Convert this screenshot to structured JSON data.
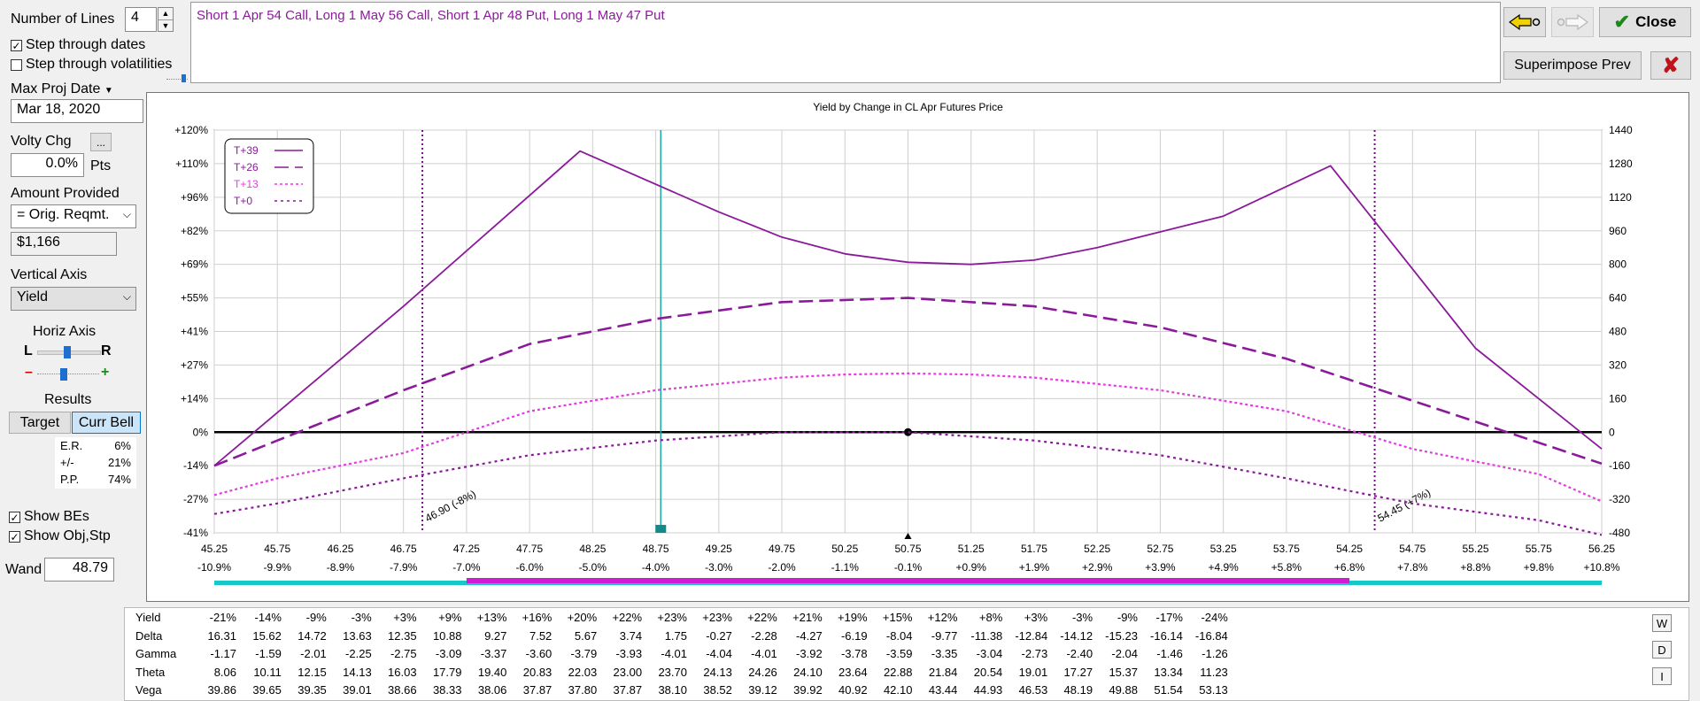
{
  "left": {
    "num_lines_label": "Number of Lines",
    "num_lines_value": "4",
    "step_dates_label": "Step through dates",
    "step_dates_checked": true,
    "step_vol_label": "Step through volatilities",
    "step_vol_checked": false,
    "max_proj_label": "Max Proj Date",
    "max_proj_value": "Mar 18, 2020",
    "volty_label": "Volty Chg",
    "volty_btn": "...",
    "volty_value": "0.0%",
    "volty_unit": "Pts",
    "amount_label": "Amount Provided",
    "amount_select": "= Orig. Reqmt.",
    "amount_value": "$1,166",
    "vaxis_label": "Vertical Axis",
    "vaxis_select": "Yield",
    "haxis_label": "Horiz Axis",
    "haxis_l": "L",
    "haxis_r": "R",
    "haxis_minus": "–",
    "haxis_plus": "+",
    "results_label": "Results",
    "target_btn": "Target",
    "currbell_btn": "Curr Bell",
    "stats": [
      {
        "k": "E.R.",
        "v": "6%"
      },
      {
        "k": "+/-",
        "v": "21%"
      },
      {
        "k": "P.P.",
        "v": "74%"
      }
    ],
    "show_bes_label": "Show BEs",
    "show_objstp_label": "Show Obj,Stp",
    "wand_label": "Wand",
    "wand_value": "48.79"
  },
  "position_text": "Short 1 Apr 54 Call, Long 1 May 56 Call, Short 1 Apr 48 Put, Long 1 May 47 Put",
  "top_right": {
    "close_label": "Close",
    "superimpose_label": "Superimpose Prev",
    "colors": {
      "close_check": "#1a8a1a",
      "cancel_x": "#c0141c",
      "arrow_yellow": "#f2d100"
    }
  },
  "chart_data": {
    "type": "line",
    "title": "Yield by Change in CL Apr Futures Price",
    "x": [
      45.25,
      45.75,
      46.25,
      46.75,
      47.25,
      47.75,
      48.25,
      48.75,
      49.25,
      49.75,
      50.25,
      50.75,
      51.25,
      51.75,
      52.25,
      52.75,
      53.25,
      53.75,
      54.25,
      54.75,
      55.25,
      55.75,
      56.25
    ],
    "x_tick_labels": [
      "45.25",
      "45.75",
      "46.25",
      "46.75",
      "47.25",
      "47.75",
      "48.25",
      "48.75",
      "49.25",
      "49.75",
      "50.25",
      "50.75",
      "51.25",
      "51.75",
      "52.25",
      "52.75",
      "53.25",
      "53.75",
      "54.25",
      "54.75",
      "55.25",
      "55.75",
      "56.25"
    ],
    "x_pct_labels": [
      "-10.9%",
      "-9.9%",
      "-8.9%",
      "-7.9%",
      "-7.0%",
      "-6.0%",
      "-5.0%",
      "-4.0%",
      "-3.0%",
      "-2.0%",
      "-1.1%",
      "-0.1%",
      "+0.9%",
      "+1.9%",
      "+2.9%",
      "+3.9%",
      "+4.9%",
      "+5.8%",
      "+6.8%",
      "+7.8%",
      "+8.8%",
      "+9.8%",
      "+10.8%"
    ],
    "y_left_ticks": [
      "+120%",
      "+110%",
      "+96%",
      "+82%",
      "+69%",
      "+55%",
      "+41%",
      "+27%",
      "+14%",
      "0%",
      "-14%",
      "-27%",
      "-41%"
    ],
    "y_right_ticks": [
      "1440",
      "1280",
      "1120",
      "960",
      "800",
      "640",
      "480",
      "320",
      "160",
      "0",
      "-160",
      "-320",
      "-480"
    ],
    "ylim_right": [
      -480,
      1440
    ],
    "series": [
      {
        "name": "T+39",
        "style": "solid",
        "color": "#8b1a9b",
        "x": [
          45.25,
          46.75,
          48.15,
          49.25,
          49.75,
          50.25,
          50.75,
          51.25,
          51.75,
          52.25,
          53.25,
          54.1,
          55.25,
          56.25
        ],
        "y": [
          -160,
          600,
          1340,
          1050,
          930,
          850,
          810,
          800,
          820,
          880,
          1030,
          1270,
          400,
          -80
        ]
      },
      {
        "name": "T+26",
        "style": "dash",
        "color": "#8b1a9b",
        "x": [
          45.25,
          45.75,
          46.75,
          47.75,
          48.75,
          49.75,
          50.75,
          51.75,
          52.75,
          53.75,
          54.75,
          55.75,
          56.25
        ],
        "y": [
          -160,
          -40,
          200,
          420,
          540,
          620,
          640,
          600,
          500,
          350,
          150,
          -50,
          -150
        ]
      },
      {
        "name": "T+13",
        "style": "dotdash",
        "color": "#e23ddf",
        "x": [
          45.25,
          45.75,
          46.75,
          47.75,
          48.75,
          49.75,
          50.25,
          50.75,
          51.25,
          51.75,
          52.75,
          53.75,
          54.75,
          55.75,
          56.25
        ],
        "y": [
          -300,
          -220,
          -100,
          100,
          200,
          260,
          275,
          280,
          275,
          260,
          200,
          100,
          -80,
          -200,
          -330
        ]
      },
      {
        "name": "T+0",
        "style": "dot",
        "color": "#8b1a9b",
        "x": [
          45.25,
          45.75,
          46.75,
          47.75,
          48.75,
          49.75,
          50.75,
          51.75,
          52.75,
          53.75,
          54.75,
          55.75,
          56.25
        ],
        "y": [
          -390,
          -340,
          -220,
          -110,
          -40,
          0,
          0,
          -40,
          -110,
          -220,
          -340,
          -420,
          -490
        ]
      }
    ],
    "breakevens": [
      {
        "x": 46.9,
        "label": "46.90 (-8%)"
      },
      {
        "x": 54.45,
        "label": "54.45 (+7%)"
      }
    ],
    "wand_x": 48.79,
    "current_x": 50.75,
    "grid": true,
    "legend_placement": "top-left",
    "bell_bar": {
      "from": 45.25,
      "to": 56.25,
      "inner_from": 47.25,
      "inner_to": 54.25,
      "outer_color": "#17c8c8",
      "inner_color": "#d21ad2"
    }
  },
  "greeks": {
    "rows": [
      {
        "label": "Yield",
        "values": [
          "-21%",
          "-14%",
          "-9%",
          "-3%",
          "+3%",
          "+9%",
          "+13%",
          "+16%",
          "+20%",
          "+22%",
          "+23%",
          "+23%",
          "+22%",
          "+21%",
          "+19%",
          "+15%",
          "+12%",
          "+8%",
          "+3%",
          "-3%",
          "-9%",
          "-17%",
          "-24%"
        ]
      },
      {
        "label": "Delta",
        "values": [
          "16.31",
          "15.62",
          "14.72",
          "13.63",
          "12.35",
          "10.88",
          "9.27",
          "7.52",
          "5.67",
          "3.74",
          "1.75",
          "-0.27",
          "-2.28",
          "-4.27",
          "-6.19",
          "-8.04",
          "-9.77",
          "-11.38",
          "-12.84",
          "-14.12",
          "-15.23",
          "-16.14",
          "-16.84"
        ]
      },
      {
        "label": "Gamma",
        "values": [
          "-1.17",
          "-1.59",
          "-2.01",
          "-2.25",
          "-2.75",
          "-3.09",
          "-3.37",
          "-3.60",
          "-3.79",
          "-3.93",
          "-4.01",
          "-4.04",
          "-4.01",
          "-3.92",
          "-3.78",
          "-3.59",
          "-3.35",
          "-3.04",
          "-2.73",
          "-2.40",
          "-2.04",
          "-1.46",
          "-1.26"
        ]
      },
      {
        "label": "Theta",
        "values": [
          "8.06",
          "10.11",
          "12.15",
          "14.13",
          "16.03",
          "17.79",
          "19.40",
          "20.83",
          "22.03",
          "23.00",
          "23.70",
          "24.13",
          "24.26",
          "24.10",
          "23.64",
          "22.88",
          "21.84",
          "20.54",
          "19.01",
          "17.27",
          "15.37",
          "13.34",
          "11.23"
        ]
      },
      {
        "label": "Vega",
        "values": [
          "39.86",
          "39.65",
          "39.35",
          "39.01",
          "38.66",
          "38.33",
          "38.06",
          "37.87",
          "37.80",
          "37.87",
          "38.10",
          "38.52",
          "39.12",
          "39.92",
          "40.92",
          "42.10",
          "43.44",
          "44.93",
          "46.53",
          "48.19",
          "49.88",
          "51.54",
          "53.13"
        ]
      }
    ],
    "side_buttons": [
      "W",
      "D",
      "I"
    ]
  }
}
